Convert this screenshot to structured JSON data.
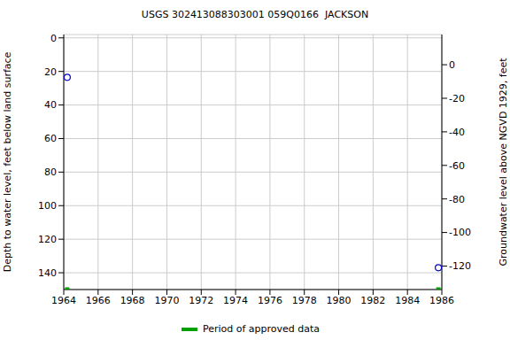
{
  "chart_data": {
    "type": "scatter",
    "title": "USGS 302413088303001 059Q0166  JACKSON",
    "y_label": "Depth to water level, feet below land surface",
    "y2_label": "Groundwater level above NGVD 1929, feet",
    "x": [
      1964.2,
      1985.8
    ],
    "series": [
      {
        "color": "#0000cc",
        "marker": "circle",
        "values": [
          23.5,
          137
        ]
      },
      {
        "name": "Period of approved data",
        "color": "#00a000",
        "marker": "square",
        "values": [
          150,
          150
        ]
      }
    ],
    "xlim": [
      1964,
      1986
    ],
    "xticks": [
      1964,
      1966,
      1968,
      1970,
      1972,
      1974,
      1976,
      1978,
      1980,
      1982,
      1984,
      1986
    ],
    "ylim": [
      150,
      -2
    ],
    "yticks": [
      0,
      20,
      40,
      60,
      80,
      100,
      120,
      140
    ],
    "y2lim": [
      -134,
      18
    ],
    "y2ticks": [
      0,
      -20,
      -40,
      -60,
      -80,
      -100,
      -120
    ],
    "grid": true,
    "legend": "bottom"
  }
}
